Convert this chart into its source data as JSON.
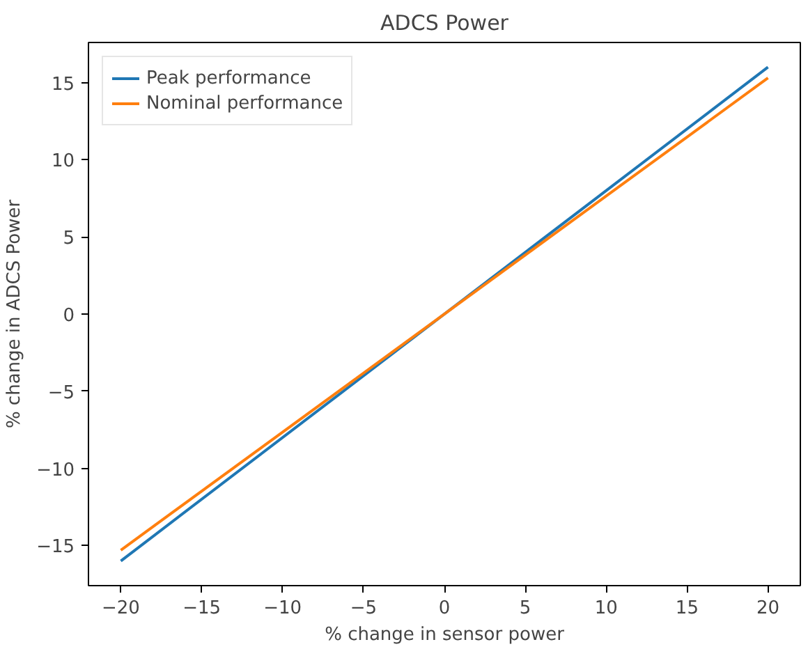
{
  "chart_data": {
    "type": "line",
    "title": "ADCS Power",
    "xlabel": "% change in sensor power",
    "ylabel": "% change in ADCS Power",
    "x": [
      -20,
      20
    ],
    "series": [
      {
        "name": "Peak performance",
        "color": "#1f77b4",
        "values": [
          -16,
          16
        ]
      },
      {
        "name": "Nominal performance",
        "color": "#ff7f0e",
        "values": [
          -15.3,
          15.3
        ]
      }
    ],
    "xlim": [
      -22,
      22
    ],
    "ylim": [
      -17.6,
      17.6
    ],
    "xticks": [
      {
        "value": -20,
        "label": "−20"
      },
      {
        "value": -15,
        "label": "−15"
      },
      {
        "value": -10,
        "label": "−10"
      },
      {
        "value": -5,
        "label": "−5"
      },
      0,
      5,
      10,
      15,
      20
    ],
    "yticks": [
      {
        "value": -15,
        "label": "−15"
      },
      {
        "value": -10,
        "label": "−10"
      },
      {
        "value": -5,
        "label": "−5"
      },
      0,
      5,
      10,
      15
    ],
    "grid": false,
    "legend": "top left",
    "line_style": "solid"
  }
}
